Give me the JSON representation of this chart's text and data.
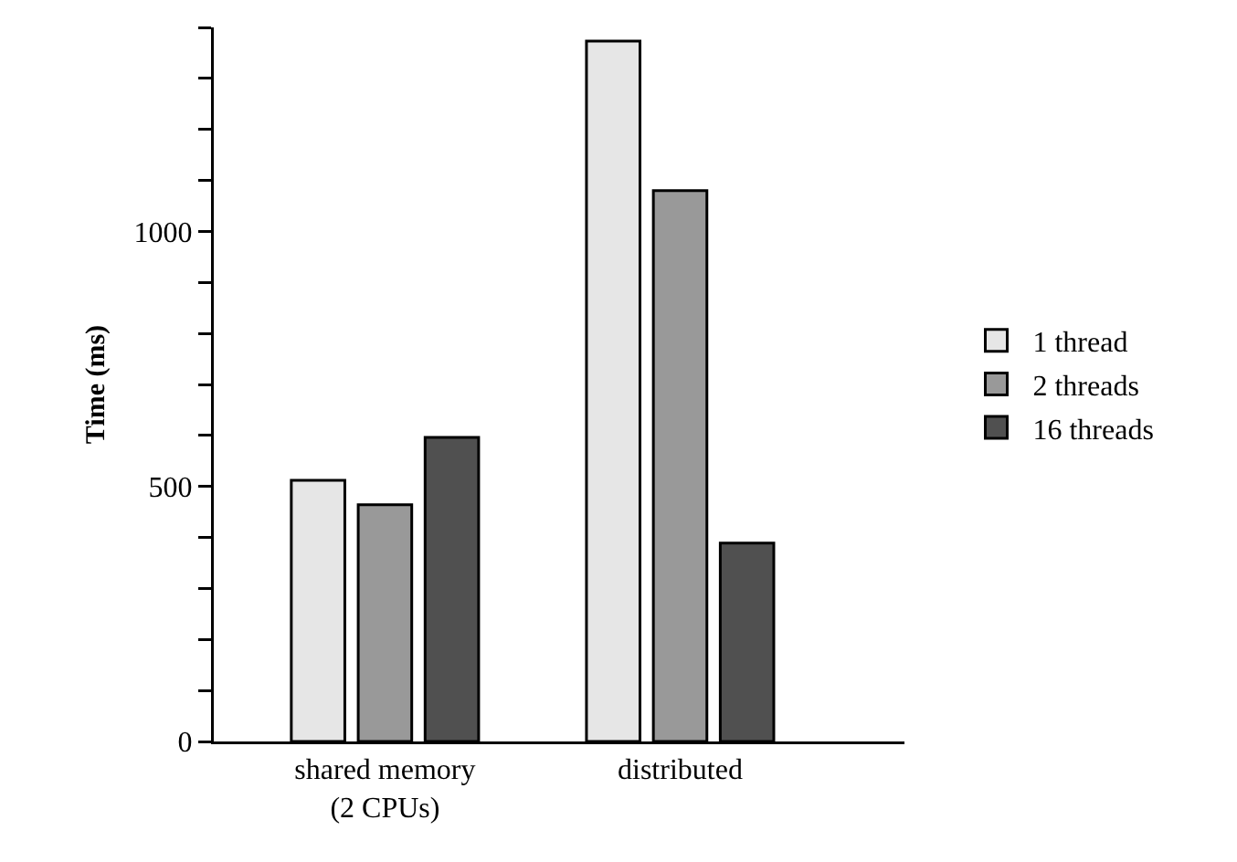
{
  "chart_data": {
    "type": "bar",
    "ylabel": "Time (ms)",
    "categories": [
      "shared memory\n(2 CPUs)",
      "distributed"
    ],
    "series": [
      {
        "name": "1 thread",
        "color": "#e6e6e6",
        "values": [
          512,
          1373
        ]
      },
      {
        "name": "2 threads",
        "color": "#999999",
        "values": [
          464,
          1080
        ]
      },
      {
        "name": "16 threads",
        "color": "#505050",
        "values": [
          596,
          389
        ]
      }
    ],
    "ylim": [
      0,
      1400
    ],
    "yticks": [
      0,
      {
        "value": 100,
        "label": null
      },
      {
        "value": 200,
        "label": null
      },
      {
        "value": 300,
        "label": null
      },
      {
        "value": 400,
        "label": null
      },
      500,
      {
        "value": 600,
        "label": null
      },
      {
        "value": 700,
        "label": null
      },
      {
        "value": 800,
        "label": null
      },
      {
        "value": 900,
        "label": null
      },
      1000,
      {
        "value": 1100,
        "label": null
      },
      {
        "value": 1200,
        "label": null
      },
      {
        "value": 1300,
        "label": null
      },
      {
        "value": 1400,
        "label": null
      }
    ],
    "grid": false,
    "legend": "right"
  }
}
